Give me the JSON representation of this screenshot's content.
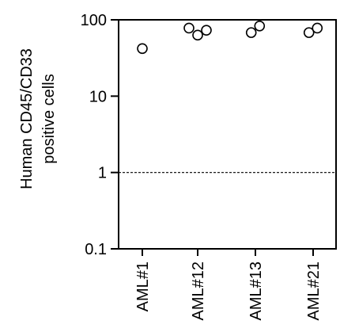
{
  "chart_data": {
    "type": "scatter",
    "title": "",
    "xlabel": "",
    "ylabel": [
      "Human CD45/CD33",
      "positive cells"
    ],
    "yscale": "log",
    "ylim": [
      0.1,
      100
    ],
    "yticks": [
      "0.1",
      "1",
      "10",
      "100"
    ],
    "categories": [
      "AML#1",
      "AML#12",
      "AML#13",
      "AML#21"
    ],
    "reference_line": {
      "y": 1,
      "style": "dashed"
    },
    "points": [
      {
        "category": "AML#1",
        "offset": 0,
        "y": 42
      },
      {
        "category": "AML#12",
        "offset": -0.25,
        "y": 78
      },
      {
        "category": "AML#12",
        "offset": 0,
        "y": 63
      },
      {
        "category": "AML#12",
        "offset": 0.25,
        "y": 73
      },
      {
        "category": "AML#13",
        "offset": -0.12,
        "y": 68
      },
      {
        "category": "AML#13",
        "offset": 0.12,
        "y": 83
      },
      {
        "category": "AML#21",
        "offset": -0.12,
        "y": 68
      },
      {
        "category": "AML#21",
        "offset": 0.12,
        "y": 78
      }
    ],
    "grid": false,
    "marker": "open-circle",
    "color": "#000000"
  }
}
